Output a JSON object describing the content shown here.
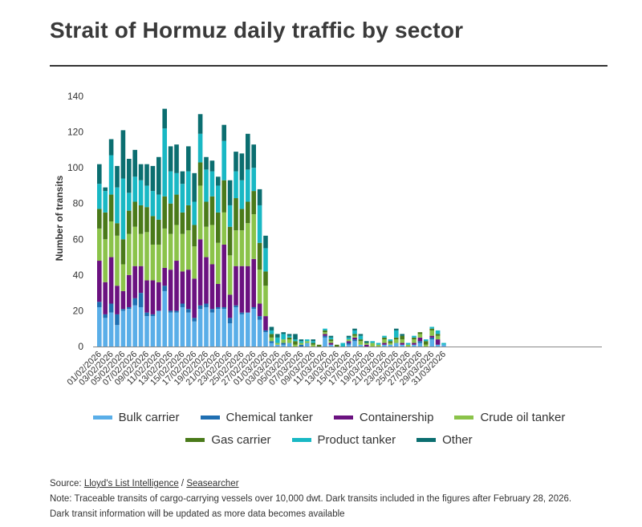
{
  "title": "Strait of Hormuz daily traffic by sector",
  "chart_data": {
    "type": "bar",
    "stacked": true,
    "ylabel": "Number of transits",
    "xlabel": "",
    "ylim": [
      0,
      140
    ],
    "yticks": [
      0,
      20,
      40,
      60,
      80,
      100,
      120,
      140
    ],
    "grid": false,
    "legend_position": "bottom",
    "categories": [
      "01/02/2026",
      "02/02/2026",
      "03/02/2026",
      "04/02/2026",
      "05/02/2026",
      "06/02/2026",
      "07/02/2026",
      "08/02/2026",
      "09/02/2026",
      "10/02/2026",
      "11/02/2026",
      "12/02/2026",
      "13/02/2026",
      "14/02/2026",
      "15/02/2026",
      "16/02/2026",
      "17/02/2026",
      "18/02/2026",
      "19/02/2026",
      "20/02/2026",
      "21/02/2026",
      "22/02/2026",
      "23/02/2026",
      "24/02/2026",
      "25/02/2026",
      "26/02/2026",
      "27/02/2026",
      "28/02/2026",
      "01/03/2026",
      "02/03/2026",
      "03/03/2026",
      "04/03/2026",
      "05/03/2026",
      "06/03/2026",
      "07/03/2026",
      "08/03/2026",
      "09/03/2026",
      "10/03/2026",
      "11/03/2026",
      "12/03/2026",
      "13/03/2026",
      "14/03/2026",
      "15/03/2026",
      "16/03/2026",
      "17/03/2026",
      "18/03/2026",
      "19/03/2026",
      "20/03/2026",
      "21/03/2026",
      "22/03/2026",
      "23/03/2026",
      "24/03/2026",
      "25/03/2026",
      "26/03/2026",
      "27/03/2026",
      "28/03/2026",
      "29/03/2026",
      "30/03/2026",
      "31/03/2026"
    ],
    "tick_labels": [
      "01/02/2026",
      "03/02/2026",
      "05/02/2026",
      "07/02/2026",
      "09/02/2026",
      "11/02/2026",
      "13/02/2026",
      "15/02/2026",
      "17/02/2026",
      "19/02/2026",
      "21/02/2026",
      "23/02/2026",
      "25/02/2026",
      "27/02/2026",
      "01/03/2026",
      "03/03/2026",
      "05/03/2026",
      "07/03/2026",
      "09/03/2026",
      "11/03/2026",
      "13/03/2026",
      "15/03/2026",
      "17/03/2026",
      "19/03/2026",
      "21/03/2026",
      "23/03/2026",
      "25/03/2026",
      "27/03/2026",
      "29/03/2026",
      "31/03/2026"
    ],
    "series": [
      {
        "name": "Bulk carrier",
        "color": "#5aaee8",
        "values": [
          22,
          16,
          19,
          12,
          20,
          21,
          23,
          22,
          17,
          17,
          20,
          31,
          19,
          19,
          22,
          19,
          14,
          21,
          22,
          19,
          21,
          21,
          13,
          22,
          18,
          19,
          21,
          15,
          8,
          2,
          1,
          1,
          2,
          0,
          0,
          2,
          0,
          0,
          5,
          1,
          0,
          0,
          1,
          3,
          1,
          0,
          0,
          0,
          1,
          1,
          2,
          1,
          0,
          1,
          2,
          0,
          4,
          1,
          1
        ]
      },
      {
        "name": "Chemical tanker",
        "color": "#1f6fb2",
        "values": [
          3,
          2,
          5,
          6,
          1,
          1,
          4,
          8,
          2,
          1,
          0,
          3,
          1,
          1,
          2,
          2,
          2,
          2,
          2,
          2,
          1,
          1,
          3,
          1,
          1,
          0,
          1,
          2,
          1,
          1,
          0,
          1,
          0,
          0,
          1,
          0,
          0,
          0,
          1,
          0,
          0,
          0,
          1,
          1,
          0,
          0,
          0,
          0,
          0,
          0,
          0,
          0,
          0,
          0,
          1,
          0,
          1,
          0,
          0
        ]
      },
      {
        "name": "Containership",
        "color": "#6b1280",
        "values": [
          23,
          18,
          26,
          16,
          10,
          18,
          18,
          15,
          18,
          19,
          16,
          10,
          23,
          28,
          18,
          22,
          22,
          37,
          26,
          25,
          13,
          35,
          13,
          22,
          26,
          26,
          27,
          7,
          8,
          0,
          0,
          0,
          0,
          0,
          0,
          0,
          0,
          0,
          1,
          1,
          0,
          0,
          1,
          1,
          0,
          1,
          0,
          0,
          1,
          0,
          0,
          1,
          0,
          1,
          2,
          0,
          1,
          3,
          0
        ]
      },
      {
        "name": "Crude oil tanker",
        "color": "#8bc34a",
        "values": [
          18,
          24,
          20,
          28,
          15,
          23,
          22,
          18,
          27,
          20,
          21,
          22,
          20,
          20,
          21,
          22,
          18,
          30,
          17,
          22,
          23,
          18,
          22,
          20,
          20,
          24,
          25,
          19,
          17,
          2,
          1,
          2,
          2,
          1,
          1,
          1,
          1,
          0,
          1,
          1,
          0,
          0,
          1,
          1,
          2,
          1,
          2,
          1,
          2,
          1,
          2,
          2,
          1,
          2,
          2,
          1,
          3,
          2,
          0
        ]
      },
      {
        "name": "Gas carrier",
        "color": "#4a7a1a",
        "values": [
          11,
          15,
          15,
          7,
          14,
          13,
          14,
          16,
          14,
          16,
          14,
          18,
          17,
          17,
          12,
          14,
          12,
          13,
          14,
          16,
          17,
          18,
          16,
          18,
          12,
          12,
          13,
          15,
          8,
          2,
          0,
          0,
          1,
          2,
          0,
          0,
          1,
          1,
          1,
          1,
          1,
          0,
          0,
          1,
          1,
          0,
          0,
          0,
          1,
          1,
          1,
          2,
          0,
          1,
          1,
          2,
          1,
          1,
          0
        ]
      },
      {
        "name": "Product tanker",
        "color": "#19b8c4",
        "values": [
          14,
          12,
          22,
          20,
          34,
          10,
          14,
          14,
          12,
          14,
          14,
          38,
          18,
          12,
          16,
          19,
          13,
          16,
          18,
          14,
          15,
          22,
          12,
          15,
          16,
          18,
          13,
          21,
          13,
          2,
          3,
          3,
          1,
          1,
          1,
          1,
          1,
          0,
          1,
          1,
          0,
          2,
          1,
          2,
          2,
          0,
          1,
          1,
          1,
          1,
          4,
          0,
          1,
          1,
          0,
          1,
          1,
          2,
          1
        ]
      },
      {
        "name": "Other",
        "color": "#0b6e70",
        "values": [
          11,
          2,
          9,
          12,
          27,
          19,
          15,
          9,
          12,
          14,
          21,
          11,
          14,
          16,
          7,
          14,
          16,
          11,
          7,
          6,
          5,
          9,
          14,
          11,
          15,
          20,
          13,
          9,
          7,
          2,
          2,
          1,
          1,
          3,
          1,
          0,
          1,
          0,
          0,
          1,
          0,
          0,
          1,
          1,
          1,
          1,
          0,
          0,
          0,
          0,
          1,
          1,
          0,
          0,
          0,
          0,
          0,
          0,
          0
        ]
      }
    ]
  },
  "source": {
    "prefix": "Source: ",
    "link1": "Lloyd's List Intelligence",
    "separator": " / ",
    "link2": "Seasearcher",
    "note": "Note: Traceable transits of cargo-carrying vessels over 10,000 dwt. Dark transits included in the figures after February 28, 2026.",
    "note2": "Dark transit information will be updated as more data becomes available"
  }
}
